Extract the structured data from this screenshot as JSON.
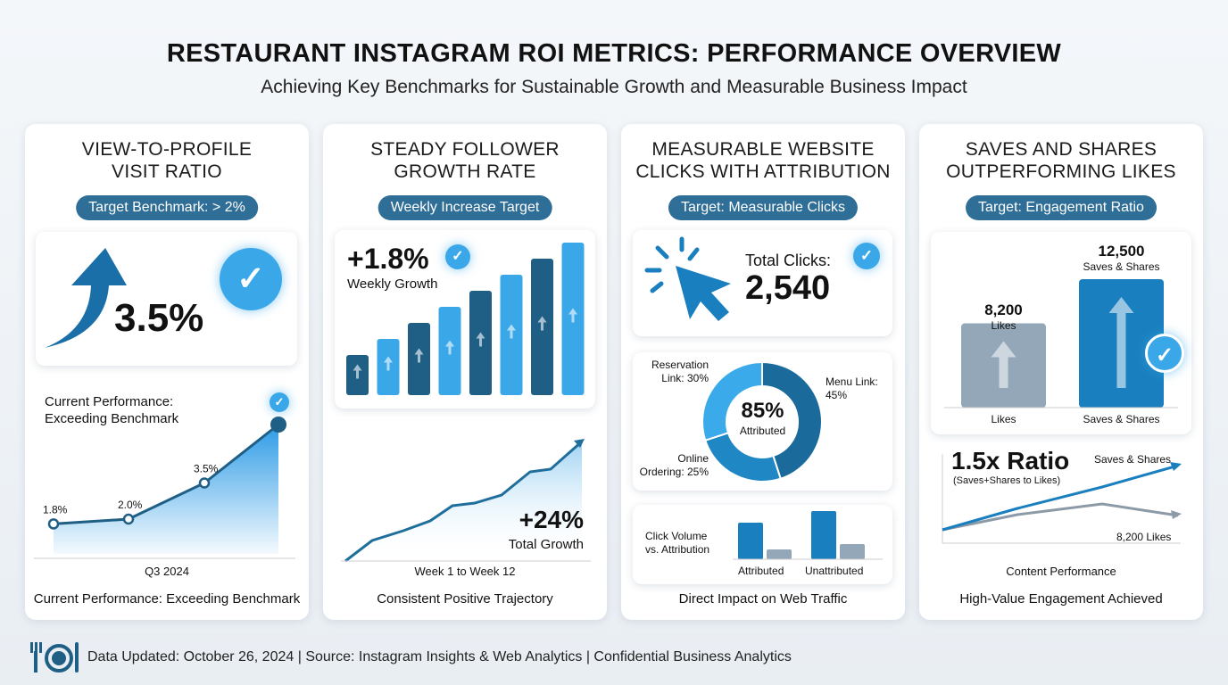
{
  "header": {
    "title": "RESTAURANT INSTAGRAM ROI METRICS: PERFORMANCE OVERVIEW",
    "subtitle": "Achieving Key Benchmarks for Sustainable Growth and Measurable Business Impact"
  },
  "cards": [
    {
      "title1": "VIEW-TO-PROFILE",
      "title2": "VISIT RATIO",
      "badge": "Target Benchmark: > 2%",
      "value": "3.5%",
      "chart_title1": "Current Performance:",
      "chart_title2": "Exceeding Benchmark",
      "points": [
        {
          "label": "1.8%",
          "value": 1.8
        },
        {
          "label": "2.0%",
          "value": 2.0
        },
        {
          "label": "3.5%",
          "value": 3.5
        }
      ],
      "xlabel": "Q3 2024",
      "footer": "Current Performance: Exceeding Benchmark"
    },
    {
      "title1": "STEADY FOLLOWER",
      "title2": "GROWTH RATE",
      "badge": "Weekly Increase Target",
      "value": "+1.8%",
      "value_label": "Weekly Growth",
      "total": "+24%",
      "total_label": "Total Growth",
      "xlabel": "Week 1 to Week 12",
      "footer": "Consistent Positive Trajectory"
    },
    {
      "title1": "MEASURABLE WEBSITE",
      "title2": "CLICKS WITH ATTRIBUTION",
      "badge": "Target: Measurable Clicks",
      "clicks_label": "Total Clicks:",
      "clicks": "2,540",
      "donut_center": "85%",
      "donut_center_label": "Attributed",
      "slices": [
        {
          "label1": "Menu Link:",
          "label2": "45%",
          "value": 45,
          "color": "#1a6a9c"
        },
        {
          "label1": "Online",
          "label2": "Ordering: 25%",
          "value": 25,
          "color": "#1f88c4"
        },
        {
          "label1": "Reservation",
          "label2": "Link: 30%",
          "value": 30,
          "color": "#3aaaea"
        }
      ],
      "bar_label1": "Click Volume",
      "bar_label2": "vs. Attribution",
      "bar_categories": [
        "Attributed",
        "Unattributed"
      ],
      "footer": "Direct Impact on Web Traffic"
    },
    {
      "title1": "SAVES AND SHARES",
      "title2": "OUTPERFORMING LIKES",
      "badge": "Target: Engagement Ratio",
      "bars": [
        {
          "value_text": "8,200",
          "label": "Likes",
          "value": 8200,
          "color": "#93a7b8"
        },
        {
          "value_text": "12,500",
          "label": "Saves & Shares",
          "value": 12500,
          "color": "#1a7fbf"
        }
      ],
      "ratio": "1.5x Ratio",
      "ratio_label": "(Saves+Shares to Likes)",
      "line1": "Saves & Shares",
      "line2": "8,200 Likes",
      "xlabel": "Content Performance",
      "footer": "High-Value Engagement Achieved"
    }
  ],
  "footer": {
    "text": "Data Updated: October 26, 2024 | Source: Instagram Insights & Web Analytics | Confidential Business Analytics"
  },
  "colors": {
    "primary": "#1a7fbf",
    "light": "#3aa8e8",
    "navy": "#1f5f86",
    "badge": "#2f6e96",
    "grey": "#93a7b8"
  }
}
